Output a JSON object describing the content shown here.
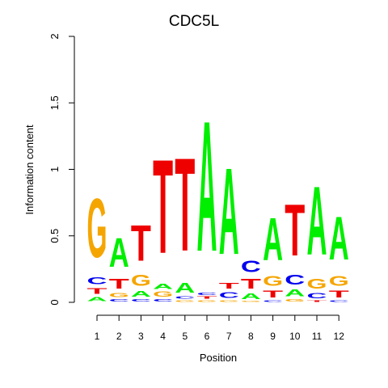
{
  "chart_data": {
    "type": "sequence-logo",
    "title": "CDC5L",
    "xlabel": "Position",
    "ylabel": "Information content",
    "ylim": [
      0,
      2
    ],
    "y_ticks": [
      "0",
      "0.5",
      "1",
      "1.5",
      "2"
    ],
    "categories": [
      "1",
      "2",
      "3",
      "4",
      "5",
      "6",
      "7",
      "8",
      "9",
      "10",
      "11",
      "12"
    ],
    "letter_colors": {
      "A": "#00ee00",
      "C": "#0000ee",
      "G": "#f5a500",
      "T": "#ee0000"
    },
    "positions": [
      {
        "position": "1",
        "letters": [
          {
            "base": "A",
            "height": 0.05
          },
          {
            "base": "T",
            "height": 0.07
          },
          {
            "base": "C",
            "height": 0.08
          },
          {
            "base": "G",
            "height": 0.71
          }
        ]
      },
      {
        "position": "2",
        "letters": [
          {
            "base": "C",
            "height": 0.03
          },
          {
            "base": "G",
            "height": 0.05
          },
          {
            "base": "T",
            "height": 0.12
          },
          {
            "base": "A",
            "height": 0.35
          }
        ]
      },
      {
        "position": "3",
        "letters": [
          {
            "base": "C",
            "height": 0.03
          },
          {
            "base": "A",
            "height": 0.07
          },
          {
            "base": "G",
            "height": 0.13
          },
          {
            "base": "T",
            "height": 0.43
          }
        ]
      },
      {
        "position": "4",
        "letters": [
          {
            "base": "C",
            "height": 0.03
          },
          {
            "base": "G",
            "height": 0.06
          },
          {
            "base": "A",
            "height": 0.06
          },
          {
            "base": "T",
            "height": 1.13
          }
        ]
      },
      {
        "position": "5",
        "letters": [
          {
            "base": "G",
            "height": 0.02
          },
          {
            "base": "C",
            "height": 0.03
          },
          {
            "base": "A",
            "height": 0.12
          },
          {
            "base": "T",
            "height": 1.12
          }
        ]
      },
      {
        "position": "6",
        "letters": [
          {
            "base": "G",
            "height": 0.02
          },
          {
            "base": "T",
            "height": 0.03
          },
          {
            "base": "C",
            "height": 0.03
          },
          {
            "base": "A",
            "height": 1.57
          }
        ]
      },
      {
        "position": "7",
        "letters": [
          {
            "base": "G",
            "height": 0.02
          },
          {
            "base": "C",
            "height": 0.07
          },
          {
            "base": "T",
            "height": 0.07
          },
          {
            "base": "A",
            "height": 1.04
          }
        ]
      },
      {
        "position": "8",
        "letters": [
          {
            "base": "G",
            "height": 0.01
          },
          {
            "base": "A",
            "height": 0.07
          },
          {
            "base": "T",
            "height": 0.12
          },
          {
            "base": "C",
            "height": 0.14
          }
        ]
      },
      {
        "position": "9",
        "letters": [
          {
            "base": "C",
            "height": 0.02
          },
          {
            "base": "T",
            "height": 0.08
          },
          {
            "base": "G",
            "height": 0.12
          },
          {
            "base": "A",
            "height": 0.51
          }
        ]
      },
      {
        "position": "10",
        "letters": [
          {
            "base": "G",
            "height": 0.03
          },
          {
            "base": "A",
            "height": 0.08
          },
          {
            "base": "C",
            "height": 0.12
          },
          {
            "base": "T",
            "height": 0.62
          }
        ]
      },
      {
        "position": "11",
        "letters": [
          {
            "base": "T",
            "height": 0.02
          },
          {
            "base": "C",
            "height": 0.06
          },
          {
            "base": "G",
            "height": 0.12
          },
          {
            "base": "A",
            "height": 0.82
          }
        ]
      },
      {
        "position": "12",
        "letters": [
          {
            "base": "C",
            "height": 0.02
          },
          {
            "base": "T",
            "height": 0.08
          },
          {
            "base": "G",
            "height": 0.12
          },
          {
            "base": "A",
            "height": 0.52
          }
        ]
      }
    ]
  }
}
